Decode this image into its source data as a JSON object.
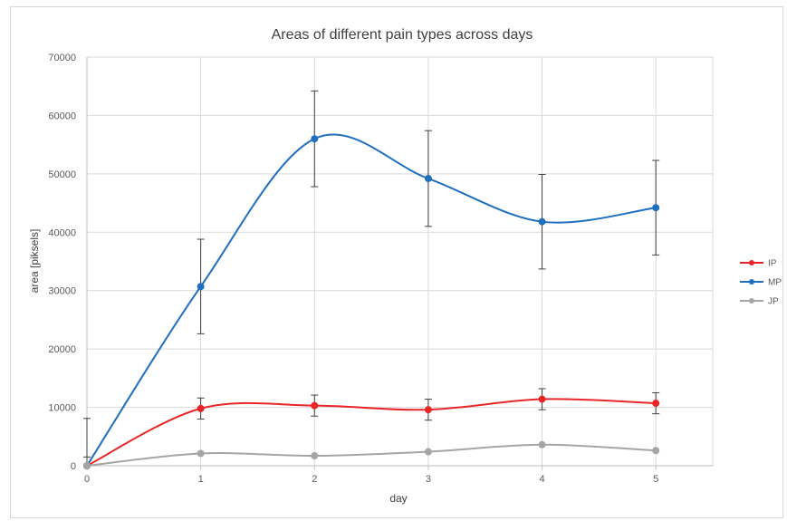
{
  "chart_data": {
    "type": "line",
    "title": "Areas of different pain types across days",
    "xlabel": "day",
    "ylabel": "area [piksels]",
    "x": [
      0,
      1,
      2,
      3,
      4,
      5
    ],
    "xlim": [
      0,
      5.5
    ],
    "ylim": [
      0,
      70000
    ],
    "yticks": [
      0,
      10000,
      20000,
      30000,
      40000,
      50000,
      60000,
      70000
    ],
    "grid": true,
    "smooth": true,
    "legend_position": "right",
    "series": [
      {
        "name": "IP",
        "color": "#e8262a",
        "values": [
          0,
          9800,
          10300,
          9600,
          11400,
          10700
        ],
        "error": [
          1500,
          1800,
          1800,
          1800,
          1800,
          1800
        ]
      },
      {
        "name": "MP",
        "color": "#1f6fbf",
        "values": [
          0,
          30700,
          56000,
          49200,
          41800,
          44200
        ],
        "error": [
          8100,
          8100,
          8200,
          8200,
          8100,
          8100
        ]
      },
      {
        "name": "JP",
        "color": "#a5a5a5",
        "values": [
          0,
          2100,
          1700,
          2400,
          3600,
          2600
        ],
        "error": [
          0,
          0,
          0,
          0,
          0,
          0
        ]
      }
    ]
  }
}
